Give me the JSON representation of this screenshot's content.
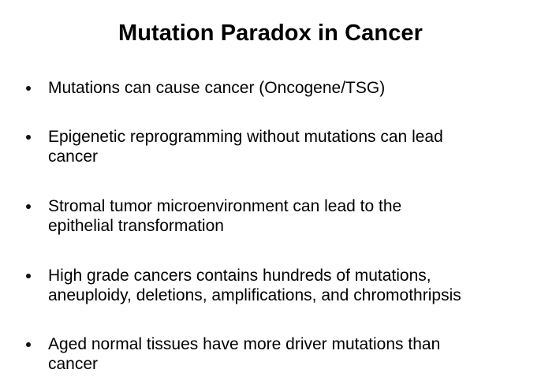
{
  "slide": {
    "title": "Mutation Paradox in Cancer",
    "bullets": [
      {
        "lines": [
          "Mutations can cause cancer (Oncogene/TSG)"
        ]
      },
      {
        "lines": [
          "Epigenetic reprogramming without mutations can lead",
          "cancer"
        ]
      },
      {
        "lines": [
          "Stromal tumor microenvironment can lead to the",
          "epithelial transformation"
        ]
      },
      {
        "lines": [
          "High grade cancers contains hundreds of mutations,",
          "aneuploidy, deletions, amplifications, and chromothripsis"
        ]
      },
      {
        "lines": [
          "Aged normal tissues have more driver mutations than",
          "cancer"
        ]
      }
    ]
  }
}
